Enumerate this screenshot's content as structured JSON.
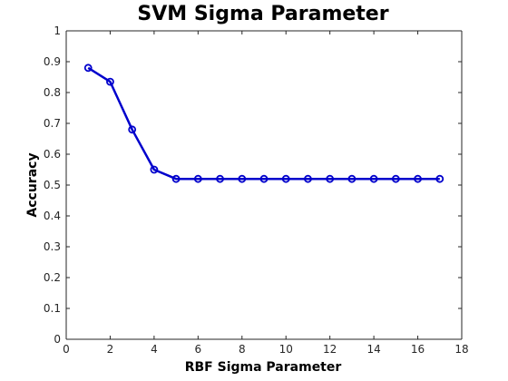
{
  "chart_data": {
    "type": "line",
    "title": "SVM Sigma Parameter",
    "xlabel": "RBF Sigma Parameter",
    "ylabel": "Accuracy",
    "xlim": [
      0,
      18
    ],
    "ylim": [
      0,
      1
    ],
    "x_ticks": [
      0,
      2,
      4,
      6,
      8,
      10,
      12,
      14,
      16,
      18
    ],
    "y_ticks": [
      0,
      0.1,
      0.2,
      0.3,
      0.4,
      0.5,
      0.6,
      0.7,
      0.8,
      0.9,
      1
    ],
    "x_tick_labels": [
      "0",
      "2",
      "4",
      "6",
      "8",
      "10",
      "12",
      "14",
      "16",
      "18"
    ],
    "y_tick_labels": [
      "0",
      "0.1",
      "0.2",
      "0.3",
      "0.4",
      "0.5",
      "0.6",
      "0.7",
      "0.8",
      "0.9",
      "1"
    ],
    "grid": false,
    "series": [
      {
        "color": "#0000CC",
        "marker": "circle",
        "x": [
          1,
          2,
          3,
          4,
          5,
          6,
          7,
          8,
          9,
          10,
          11,
          12,
          13,
          14,
          15,
          16,
          17
        ],
        "y": [
          0.88,
          0.835,
          0.68,
          0.55,
          0.52,
          0.52,
          0.52,
          0.52,
          0.52,
          0.52,
          0.52,
          0.52,
          0.52,
          0.52,
          0.52,
          0.52,
          0.52
        ]
      }
    ]
  }
}
